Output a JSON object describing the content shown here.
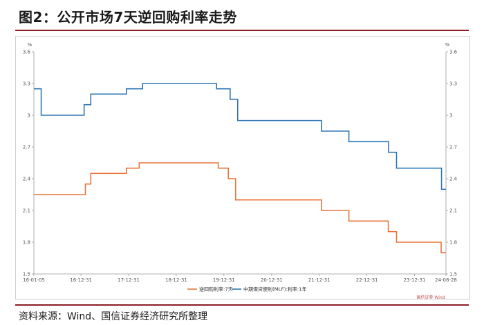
{
  "title": "图2：公开市场7天逆回购利率走势",
  "source": "资料来源：Wind、国信证券经济研究所整理",
  "chart_data": {
    "type": "line",
    "unit_left": "%",
    "unit_right": "%",
    "y_ticks": [
      "1.5",
      "1.8",
      "2.1",
      "2.4",
      "2.7",
      "3",
      "3.3",
      "3.6"
    ],
    "y_tick_values": [
      1.5,
      1.8,
      2.1,
      2.4,
      2.7,
      3.0,
      3.3,
      3.6
    ],
    "ylim": [
      1.5,
      3.6
    ],
    "x_ticks": [
      "16-01-05",
      "16-12-31",
      "17-12-31",
      "18-12-31",
      "19-12-31",
      "20-12-31",
      "21-12-31",
      "22-12-31",
      "23-12-31",
      "24-08-28"
    ],
    "x_tick_values": [
      "2016-01-05",
      "2016-12-31",
      "2017-12-31",
      "2018-12-31",
      "2019-12-31",
      "2020-12-31",
      "2021-12-31",
      "2022-12-31",
      "2023-12-31",
      "2024-08-28"
    ],
    "xlim": [
      "2016-01-05",
      "2024-08-28"
    ],
    "grid": false,
    "legend_position": "bottom-center",
    "note_text": "国信证券 Wind",
    "series": [
      {
        "name": "逆回购利率:7天",
        "color": "#e8743b",
        "step": true,
        "points": [
          [
            "2016-01-05",
            2.25
          ],
          [
            "2017-02-03",
            2.35
          ],
          [
            "2017-03-16",
            2.45
          ],
          [
            "2017-12-14",
            2.5
          ],
          [
            "2018-03-22",
            2.55
          ],
          [
            "2019-11-18",
            2.5
          ],
          [
            "2020-02-03",
            2.4
          ],
          [
            "2020-03-30",
            2.2
          ],
          [
            "2022-01-17",
            2.1
          ],
          [
            "2022-08-15",
            2.0
          ],
          [
            "2023-06-13",
            1.9
          ],
          [
            "2023-08-15",
            1.8
          ],
          [
            "2024-07-22",
            1.7
          ],
          [
            "2024-08-28",
            1.7
          ]
        ]
      },
      {
        "name": "中期借贷便利(MLF):利率:1年",
        "color": "#2e75b6",
        "step": true,
        "points": [
          [
            "2016-01-05",
            3.25
          ],
          [
            "2016-03-01",
            3.0
          ],
          [
            "2017-01-24",
            3.1
          ],
          [
            "2017-03-16",
            3.2
          ],
          [
            "2017-12-14",
            3.25
          ],
          [
            "2018-04-17",
            3.3
          ],
          [
            "2019-11-05",
            3.25
          ],
          [
            "2020-02-17",
            3.15
          ],
          [
            "2020-04-15",
            2.95
          ],
          [
            "2022-01-17",
            2.85
          ],
          [
            "2022-08-15",
            2.75
          ],
          [
            "2023-06-15",
            2.65
          ],
          [
            "2023-08-15",
            2.5
          ],
          [
            "2024-07-25",
            2.3
          ],
          [
            "2024-08-28",
            2.3
          ]
        ]
      }
    ]
  }
}
